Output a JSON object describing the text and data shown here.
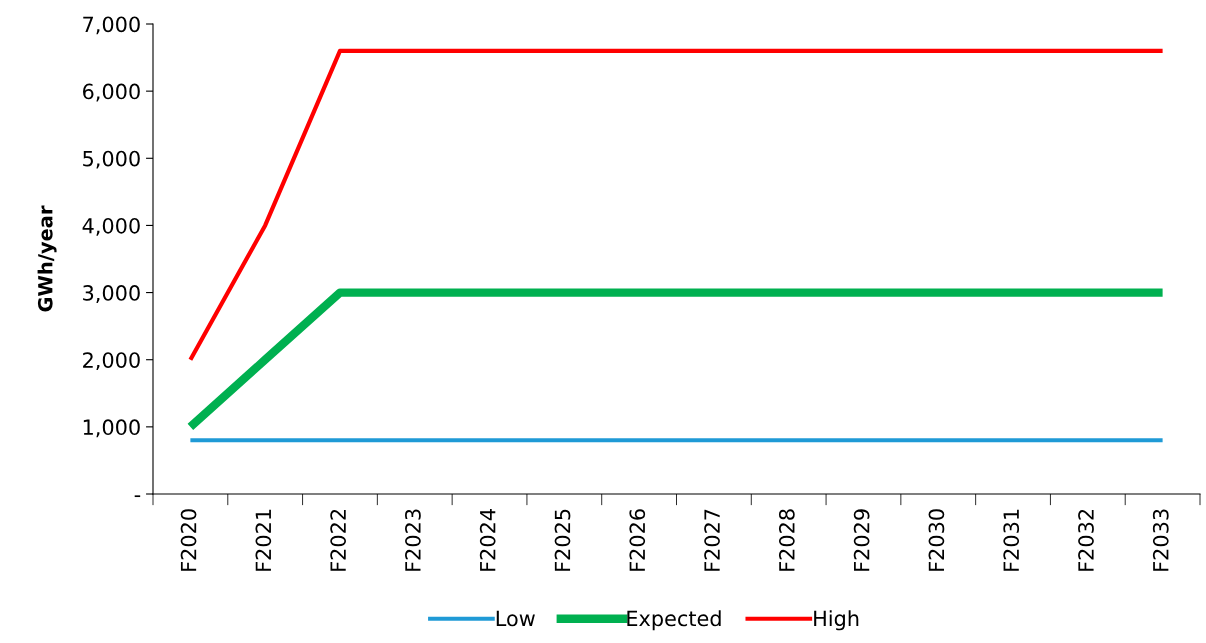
{
  "chart_data": {
    "type": "line",
    "ylabel": "GWh/year",
    "categories": [
      "F2020",
      "F2021",
      "F2022",
      "F2023",
      "F2024",
      "F2025",
      "F2026",
      "F2027",
      "F2028",
      "F2029",
      "F2030",
      "F2031",
      "F2032",
      "F2033"
    ],
    "series": [
      {
        "name": "Low",
        "color": "#1f9ad6",
        "values": [
          800,
          800,
          800,
          800,
          800,
          800,
          800,
          800,
          800,
          800,
          800,
          800,
          800,
          800
        ]
      },
      {
        "name": "Expected",
        "color": "#00b050",
        "values": [
          1000,
          2000,
          3000,
          3000,
          3000,
          3000,
          3000,
          3000,
          3000,
          3000,
          3000,
          3000,
          3000,
          3000
        ]
      },
      {
        "name": "High",
        "color": "#ff0000",
        "values": [
          2000,
          4000,
          6600,
          6600,
          6600,
          6600,
          6600,
          6600,
          6600,
          6600,
          6600,
          6600,
          6600,
          6600
        ]
      }
    ],
    "ylim": [
      0,
      7000
    ],
    "yticks": [
      {
        "value": 0,
        "label": "-"
      },
      {
        "value": 1000,
        "label": "1,000"
      },
      {
        "value": 2000,
        "label": "2,000"
      },
      {
        "value": 3000,
        "label": "3,000"
      },
      {
        "value": 4000,
        "label": "4,000"
      },
      {
        "value": 5000,
        "label": "5,000"
      },
      {
        "value": 6000,
        "label": "6,000"
      },
      {
        "value": 7000,
        "label": "7,000"
      }
    ],
    "grid": false,
    "legend": "bottom",
    "marker": "none",
    "line_style": "solid"
  }
}
